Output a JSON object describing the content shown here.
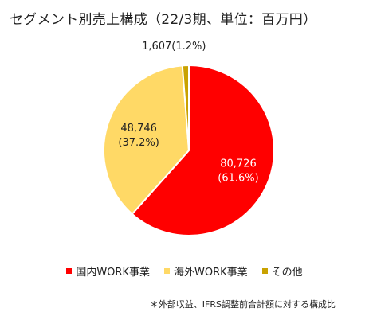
{
  "chart_data": {
    "type": "pie",
    "title": "セグメント別売上構成（22/3期、単位：百万円）",
    "categories": [
      "国内WORK事業",
      "海外WORK事業",
      "その他"
    ],
    "values": [
      80726,
      48746,
      1607
    ],
    "percent_labels": [
      "(61.6%)",
      "(37.2%)",
      "(1.2%)"
    ],
    "value_labels": [
      "80,726",
      "48,746",
      "1,607"
    ],
    "colors": [
      "#ff0000",
      "#ffd966",
      "#c9a200"
    ],
    "legend_position": "bottom",
    "footnote": "＊外部収益、IFRS調整前合計額に対する構成比"
  }
}
